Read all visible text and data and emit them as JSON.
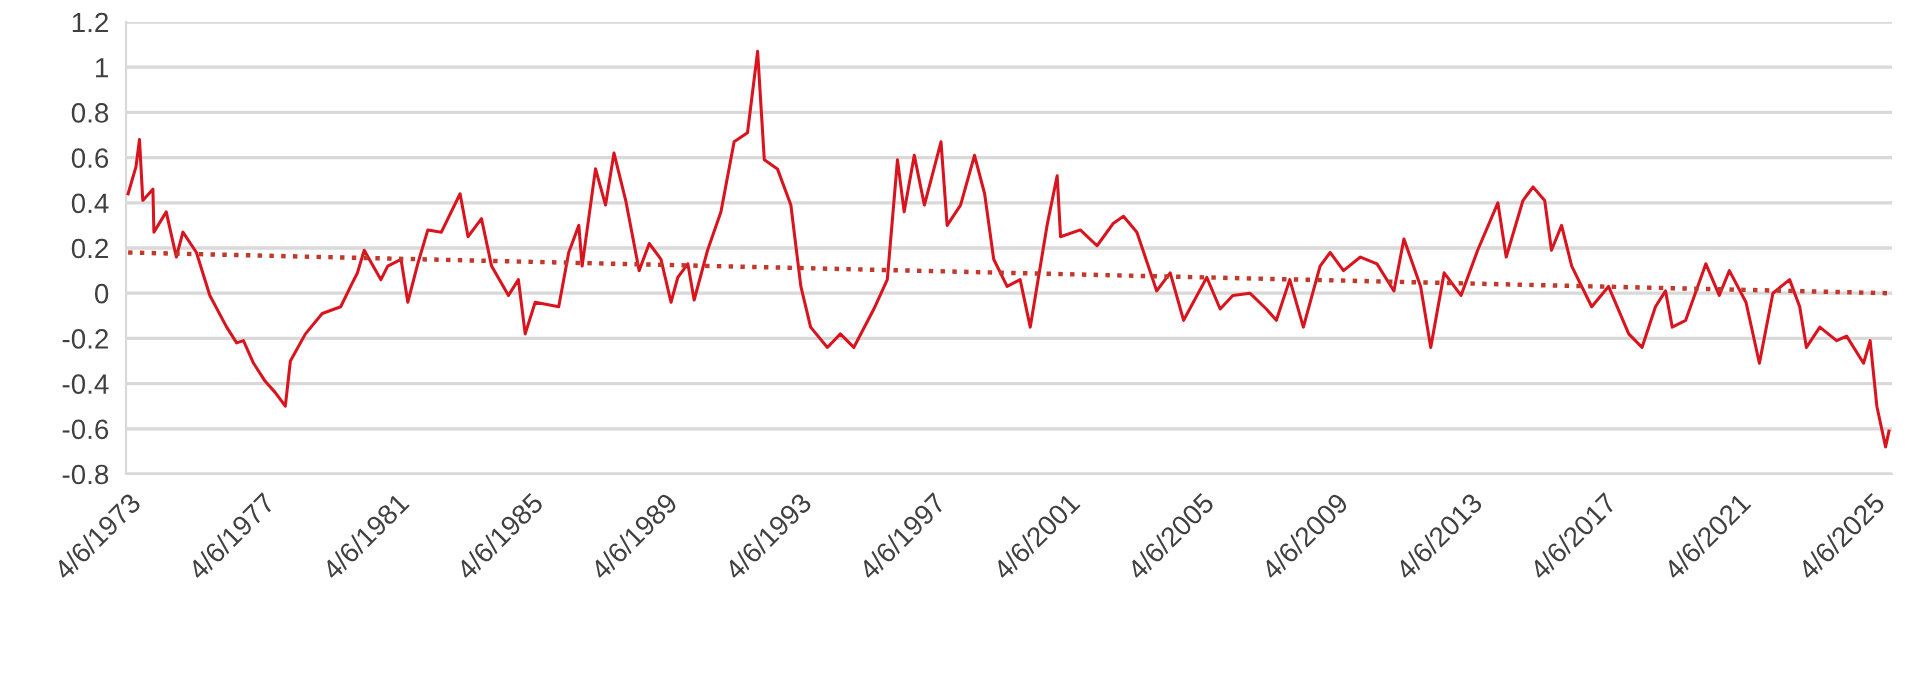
{
  "chart_data": {
    "type": "line",
    "x": [
      "1973-04-06",
      "1973-07-01",
      "1973-08-08",
      "1973-09-13",
      "1974-01-01",
      "1974-01-12",
      "1974-05-26",
      "1974-09-13",
      "1974-11-24",
      "1975-04-20",
      "1975-09-13",
      "1976-03-14",
      "1976-07-01",
      "1976-09-13",
      "1977-01-01",
      "1977-05-08",
      "1977-08-26",
      "1977-12-13",
      "1978-02-06",
      "1978-07-20",
      "1979-01-19",
      "1979-08-08",
      "1979-11-24",
      "1980-02-06",
      "1980-04-20",
      "1980-10-19",
      "1981-01-01",
      "1981-05-26",
      "1981-08-08",
      "1981-11-24",
      "1982-03-14",
      "1982-08-08",
      "1983-02-28",
      "1983-05-26",
      "1983-10-19",
      "1984-02-06",
      "1984-08-08",
      "1984-11-24",
      "1985-02-06",
      "1985-05-26",
      "1986-02-06",
      "1986-05-26",
      "1986-09-13",
      "1986-10-19",
      "1987-03-14",
      "1987-07-01",
      "1987-10-01",
      "1988-02-06",
      "1988-07-01",
      "1988-10-19",
      "1989-02-24",
      "1989-06-13",
      "1989-08-26",
      "1989-12-13",
      "1990-02-20",
      "1990-07-16",
      "1990-12-09",
      "1991-05-01",
      "1991-09-24",
      "1992-01-12",
      "1992-03-25",
      "1992-08-15",
      "1993-01-08",
      "1993-04-27",
      "1993-08-11",
      "1994-02-10",
      "1994-07-01",
      "1994-11-24",
      "1995-07-01",
      "1995-11-24",
      "1996-03-14",
      "1996-05-26",
      "1996-09-13",
      "1997-01-01",
      "1997-07-01",
      "1997-09-06",
      "1998-01-30",
      "1998-07-01",
      "1998-10-19",
      "1999-01-26",
      "1999-06-21",
      "1999-11-10",
      "2000-02-28",
      "2000-08-29",
      "2000-12-17",
      "2001-01-23",
      "2001-08-26",
      "2002-02-24",
      "2002-08-22",
      "2002-12-09",
      "2003-05-04",
      "2003-12-06",
      "2004-05-01",
      "2004-09-24",
      "2005-06-03",
      "2005-10-27",
      "2006-03-14",
      "2006-09-16",
      "2007-03-14",
      "2007-07-01",
      "2007-11-24",
      "2008-04-20",
      "2008-10-19",
      "2009-02-06",
      "2009-07-01",
      "2010-01-01",
      "2010-07-01",
      "2011-01-01",
      "2011-04-20",
      "2011-10-19",
      "2012-02-06",
      "2012-07-01",
      "2013-01-01",
      "2013-07-01",
      "2014-02-06",
      "2014-05-08",
      "2014-11-06",
      "2015-02-24",
      "2015-07-01",
      "2015-09-13",
      "2016-01-01",
      "2016-04-20",
      "2016-11-24",
      "2017-05-26",
      "2018-01-01",
      "2018-05-26",
      "2018-10-19",
      "2019-02-06",
      "2019-04-20",
      "2019-09-13",
      "2020-04-20",
      "2020-09-13",
      "2021-01-01",
      "2021-07-01",
      "2021-11-24",
      "2022-04-20",
      "2022-10-19",
      "2023-02-06",
      "2023-04-20",
      "2023-09-13",
      "2024-03-14",
      "2024-07-01",
      "2025-01-01",
      "2025-03-14",
      "2025-05-26",
      "2025-08-29",
      "2025-10-05"
    ],
    "series": [
      {
        "color": "#d9141e",
        "line_style": "solid",
        "values": [
          0.44,
          0.56,
          0.68,
          0.41,
          0.46,
          0.27,
          0.36,
          0.16,
          0.27,
          0.18,
          -0.01,
          -0.15,
          -0.22,
          -0.21,
          -0.31,
          -0.39,
          -0.44,
          -0.5,
          -0.3,
          -0.18,
          -0.09,
          -0.06,
          0.03,
          0.09,
          0.19,
          0.06,
          0.12,
          0.15,
          -0.04,
          0.13,
          0.28,
          0.27,
          0.44,
          0.25,
          0.33,
          0.12,
          -0.01,
          0.06,
          -0.18,
          -0.04,
          -0.06,
          0.18,
          0.3,
          0.12,
          0.55,
          0.39,
          0.62,
          0.41,
          0.1,
          0.22,
          0.15,
          -0.04,
          0.07,
          0.13,
          -0.03,
          0.19,
          0.36,
          0.67,
          0.71,
          1.07,
          0.59,
          0.55,
          0.39,
          0.03,
          -0.15,
          -0.24,
          -0.18,
          -0.24,
          -0.07,
          0.06,
          0.59,
          0.36,
          0.61,
          0.39,
          0.67,
          0.3,
          0.39,
          0.61,
          0.44,
          0.15,
          0.03,
          0.06,
          -0.15,
          0.3,
          0.52,
          0.25,
          0.28,
          0.21,
          0.31,
          0.34,
          0.27,
          0.01,
          0.09,
          -0.12,
          0.07,
          -0.07,
          -0.01,
          0.0,
          -0.07,
          -0.12,
          0.06,
          -0.15,
          0.12,
          0.18,
          0.1,
          0.16,
          0.13,
          0.01,
          0.24,
          0.03,
          -0.24,
          0.09,
          -0.01,
          0.19,
          0.4,
          0.16,
          0.41,
          0.47,
          0.41,
          0.19,
          0.3,
          0.12,
          -0.06,
          0.03,
          -0.18,
          -0.24,
          -0.06,
          0.01,
          -0.15,
          -0.12,
          0.13,
          -0.01,
          0.1,
          -0.04,
          -0.31,
          0.0,
          0.06,
          -0.06,
          -0.24,
          -0.15,
          -0.21,
          -0.19,
          -0.31,
          -0.21,
          -0.5,
          -0.68,
          -0.61
        ]
      },
      {
        "color": "#c0392b",
        "line_style": "dotted",
        "x": [
          "1973-04-06",
          "2025-10-05"
        ],
        "values": [
          0.18,
          0.0
        ]
      }
    ],
    "xlim": [
      "1973-03-14",
      "2025-11-07"
    ],
    "xticks": [
      {
        "value": "1973-04-06",
        "label": "4/6/1973"
      },
      {
        "value": "1977-04-06",
        "label": "4/6/1977"
      },
      {
        "value": "1981-04-06",
        "label": "4/6/1981"
      },
      {
        "value": "1985-04-06",
        "label": "4/6/1985"
      },
      {
        "value": "1989-04-06",
        "label": "4/6/1989"
      },
      {
        "value": "1993-04-06",
        "label": "4/6/1993"
      },
      {
        "value": "1997-04-06",
        "label": "4/6/1997"
      },
      {
        "value": "2001-04-06",
        "label": "4/6/2001"
      },
      {
        "value": "2005-04-06",
        "label": "4/6/2005"
      },
      {
        "value": "2009-04-06",
        "label": "4/6/2009"
      },
      {
        "value": "2013-04-06",
        "label": "4/6/2013"
      },
      {
        "value": "2017-04-06",
        "label": "4/6/2017"
      },
      {
        "value": "2021-04-06",
        "label": "4/6/2021"
      },
      {
        "value": "2025-04-06",
        "label": "4/6/2025"
      }
    ],
    "ylim": [
      -0.8,
      1.2
    ],
    "yticks": [
      -0.8,
      -0.6,
      -0.4,
      -0.2,
      0,
      0.2,
      0.4,
      0.6,
      0.8,
      1,
      1.2
    ],
    "grid": "y"
  }
}
